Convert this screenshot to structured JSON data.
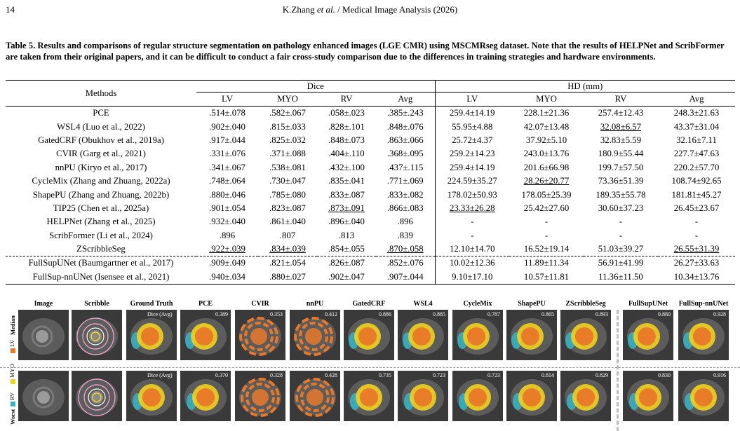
{
  "header": {
    "page_number": "14",
    "journal_prefix": "K.Zhang ",
    "journal_italic": "et al.",
    "journal_suffix": " / Medical Image Analysis (2026)"
  },
  "caption": "Table 5. Results and comparisons of regular structure segmentation on pathology enhanced images (LGE CMR) using MSCMRseg dataset. Note that the results of HELPNet and ScribFormer are taken from their original papers, and it can be difficult to conduct a fair cross-study comparison due to the differences in training strategies and hardware environments.",
  "table": {
    "methods_header": "Methods",
    "group_dice": "Dice",
    "group_hd": "HD (mm)",
    "subheaders": [
      "LV",
      "MYO",
      "RV",
      "Avg",
      "LV",
      "MYO",
      "RV",
      "Avg"
    ],
    "rows": [
      {
        "method": "PCE",
        "cells": [
          ".514±.078",
          ".582±.067",
          ".058±.023",
          ".385±.243",
          "259.4±14.19",
          "228.1±21.36",
          "257.4±12.43",
          "248.3±21.63"
        ]
      },
      {
        "method": "WSL4 (Luo et al., 2022)",
        "cells": [
          ".902±.040",
          ".815±.033",
          ".828±.101",
          ".848±.076",
          "55.95±4.88",
          "42.07±13.48",
          "32.08±6.57",
          "43.37±31.04"
        ],
        "underline": [
          6
        ]
      },
      {
        "method": "GatedCRF (Obukhov et al., 2019a)",
        "cells": [
          ".917±.044",
          ".825±.032",
          ".848±.073",
          ".863±.066",
          "25.72±4.37",
          "37.92±5.10",
          "32.83±5.59",
          "32.16±7.11"
        ]
      },
      {
        "method": "CVIR (Garg et al., 2021)",
        "cells": [
          ".331±.076",
          ".371±.088",
          ".404±.110",
          ".368±.095",
          "259.2±14.23",
          "243.0±13.76",
          "180.9±55.44",
          "227.7±47.63"
        ]
      },
      {
        "method": "nnPU (Kiryo et al., 2017)",
        "cells": [
          ".341±.067",
          ".538±.081",
          ".432±.100",
          ".437±.115",
          "259.4±14.19",
          "201.6±66.98",
          "199.7±57.50",
          "220.2±57.70"
        ]
      },
      {
        "method": "CycleMix (Zhang and Zhuang, 2022a)",
        "cells": [
          ".748±.064",
          ".730±.047",
          ".835±.041",
          ".771±.069",
          "224.59±35.27",
          "28.26±20.77",
          "73.36±51.39",
          "108.74±92.65"
        ],
        "underline": [
          5
        ]
      },
      {
        "method": "ShapePU (Zhang and Zhuang, 2022b)",
        "cells": [
          ".880±.046",
          ".785±.080",
          ".833±.087",
          ".833±.082",
          "178.02±50.93",
          "178.05±25.39",
          "189.35±55.78",
          "181.81±45.27"
        ]
      },
      {
        "method": "TIP25 (Chen et al., 2025a)",
        "cells": [
          ".901±.054",
          ".823±.087",
          ".873±.091",
          ".866±.083",
          "23.33±26.28",
          "25.42±27.60",
          "30.60±37.23",
          "26.45±23.67"
        ],
        "underline": [
          2,
          4
        ],
        "bold": [
          6,
          7
        ]
      },
      {
        "method": "HELPNet (Zhang et al., 2025)",
        "cells": [
          ".932±.040",
          ".861±.040",
          ".896±.040",
          ".896",
          "-",
          "-",
          "-",
          "-"
        ],
        "bold": [
          0,
          1,
          2,
          3
        ]
      },
      {
        "method": "ScribFormer (Li et al., 2024)",
        "cells": [
          ".896",
          ".807",
          ".813",
          ".839",
          "-",
          "-",
          "-",
          "-"
        ]
      },
      {
        "method": "ZScribbleSeg",
        "cells": [
          ".922±.039",
          ".834±.039",
          ".854±.055",
          ".870±.058",
          "12.10±14.70",
          "16.52±19.14",
          "51.03±39.27",
          "26.55±31.39"
        ],
        "underline": [
          0,
          1,
          3,
          7
        ],
        "bold": [
          4,
          5
        ]
      },
      {
        "method": "FullSupUNet (Baumgartner et al., 2017)",
        "cells": [
          ".909±.049",
          ".821±.054",
          ".826±.087",
          ".852±.076",
          "10.02±12.36",
          "11.89±11.34",
          "56.91±41.99",
          "26.27±33.63"
        ]
      },
      {
        "method": "FullSup-nnUNet (Isensee et al., 2021)",
        "cells": [
          ".940±.034",
          ".880±.027",
          ".902±.047",
          ".907±.044",
          "9.10±17.10",
          "10.57±11.81",
          "11.36±11.50",
          "10.34±13.76"
        ]
      }
    ]
  },
  "figure": {
    "columns": [
      "Image",
      "Scribble",
      "Ground Truth",
      "PCE",
      "CVIR",
      "nnPU",
      "GatedCRF",
      "WSL4",
      "CycleMix",
      "ShapePU",
      "ZScribbleSeg",
      "FullSupUNet",
      "FullSup-nnUNet"
    ],
    "dice_label": "Dice (Avg)",
    "median_scores": [
      "0.389",
      "0.353",
      "0.412",
      "0.886",
      "0.885",
      "0.787",
      "0.865",
      "0.893",
      "0.880",
      "0.928"
    ],
    "worst_scores": [
      "0.370",
      "0.328",
      "0.428",
      "0.735",
      "0.723",
      "0.723",
      "0.814",
      "0.829",
      "0.830",
      "0.916"
    ],
    "row_labels": [
      "Median",
      "Worst"
    ],
    "legend": [
      "LV",
      "MYO",
      "RV"
    ],
    "colors": {
      "lv": "#e8782a",
      "myo": "#f2d21e",
      "rv": "#35b5c8",
      "scribble_pink": "#e8a0c8",
      "scribble_white": "#ffffff"
    }
  }
}
